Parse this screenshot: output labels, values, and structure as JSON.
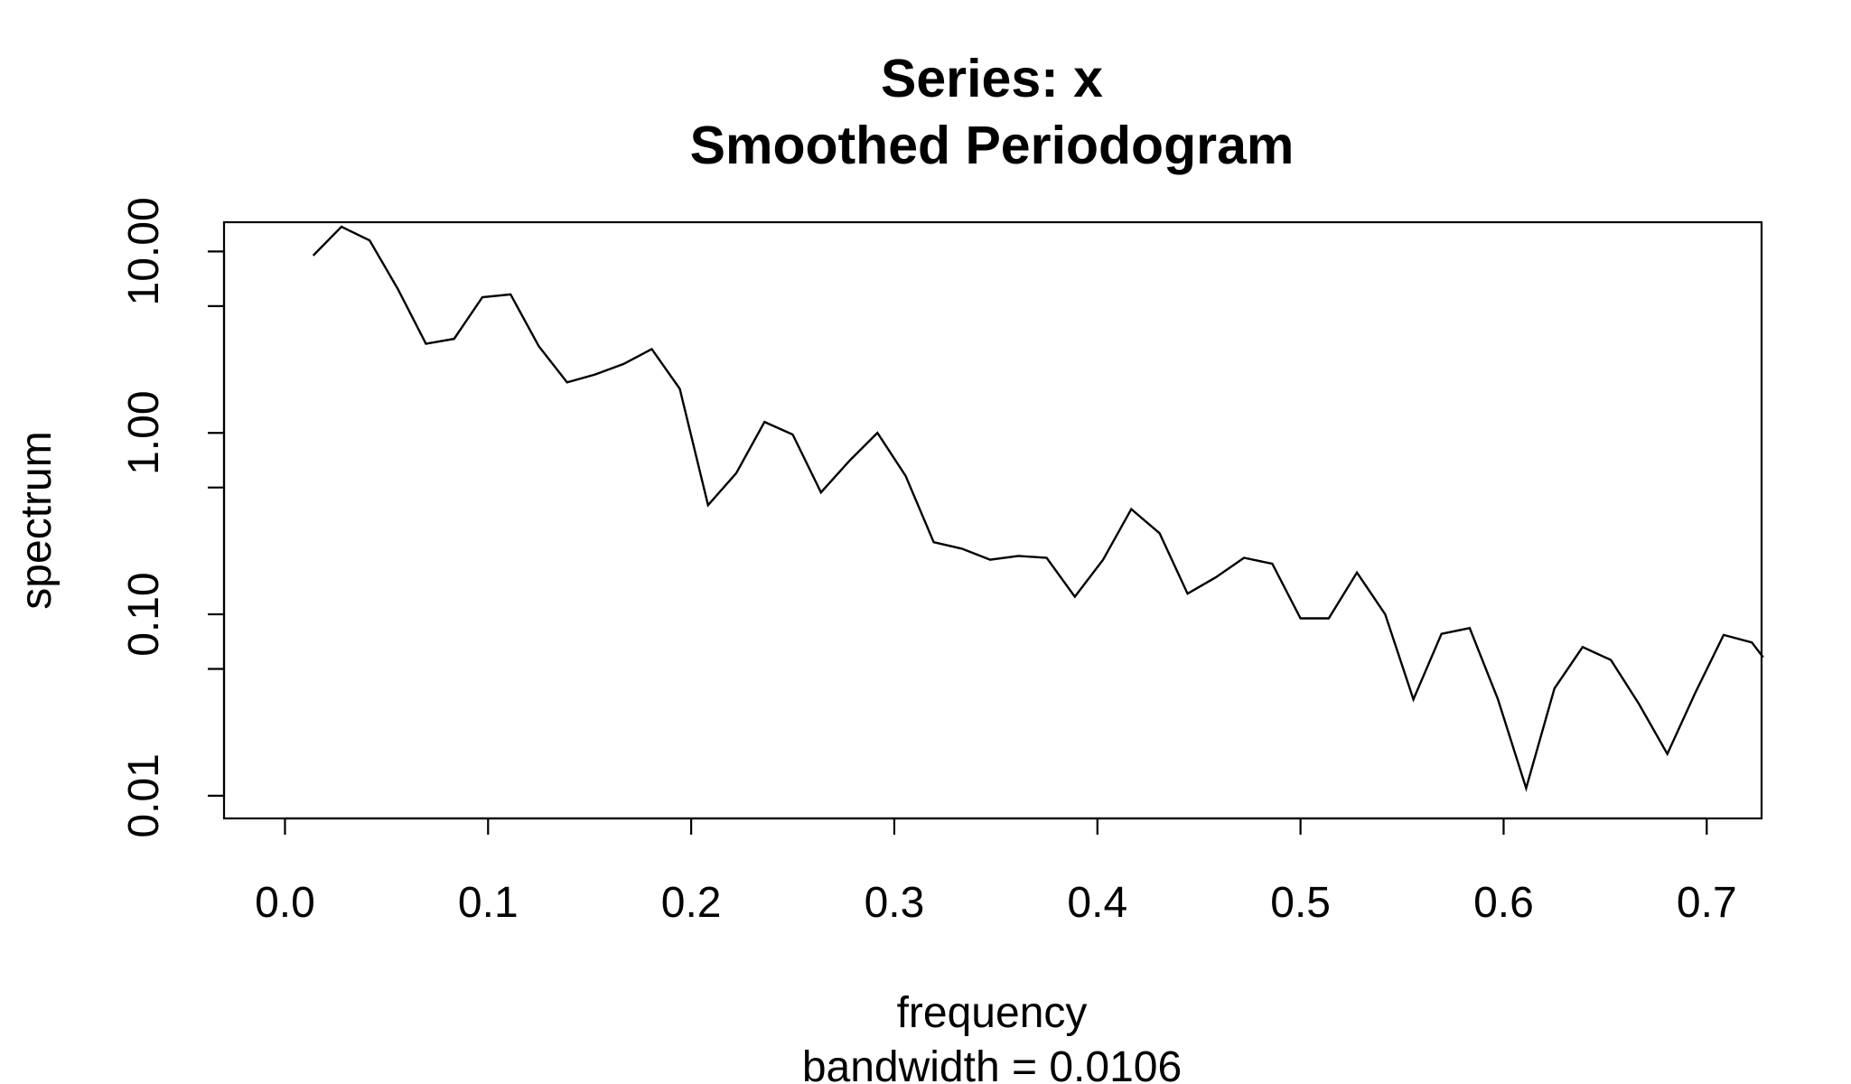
{
  "chart_data": {
    "type": "line",
    "title": "Series: x",
    "subtitle": "Smoothed Periodogram",
    "xlabel": "frequency",
    "ylabel": "spectrum",
    "sub_xlabel": "bandwidth = 0.0106",
    "xlim": [
      -0.03,
      0.727
    ],
    "ylim": [
      0.0075,
      14.5
    ],
    "y_scale": "log",
    "grid": false,
    "x_ticks": [
      0.0,
      0.1,
      0.2,
      0.3,
      0.4,
      0.5,
      0.6,
      0.7
    ],
    "x_tick_labels": [
      "0.0",
      "0.1",
      "0.2",
      "0.3",
      "0.4",
      "0.5",
      "0.6",
      "0.7"
    ],
    "y_major_ticks": [
      0.01,
      0.1,
      1,
      10
    ],
    "y_tick_labels": [
      "0.01",
      "0.10",
      "1.00",
      "10.00"
    ],
    "y_minor_ticks": [
      0.05,
      0.5,
      5
    ],
    "series": [
      {
        "color": "#000000",
        "x": [
          0.0139,
          0.0278,
          0.0417,
          0.0556,
          0.0694,
          0.0833,
          0.0972,
          0.1111,
          0.125,
          0.1389,
          0.1528,
          0.1667,
          0.1806,
          0.1944,
          0.2083,
          0.2222,
          0.2361,
          0.25,
          0.2639,
          0.2778,
          0.2917,
          0.3056,
          0.3194,
          0.3333,
          0.3472,
          0.3611,
          0.375,
          0.3889,
          0.4028,
          0.4167,
          0.4306,
          0.4444,
          0.4583,
          0.4722,
          0.4861,
          0.5,
          0.5139,
          0.5278,
          0.5417,
          0.5556,
          0.5694,
          0.5833,
          0.5972,
          0.6111,
          0.625,
          0.6389,
          0.6528,
          0.6667,
          0.6806,
          0.6944,
          0.7083,
          0.7222,
          0.7278
        ],
        "y": [
          9.5,
          13.7,
          11.5,
          6.2,
          3.1,
          3.3,
          5.6,
          5.8,
          3.0,
          1.9,
          2.1,
          2.4,
          2.9,
          1.75,
          0.4,
          0.6,
          1.15,
          0.98,
          0.47,
          0.7,
          1.0,
          0.58,
          0.25,
          0.23,
          0.2,
          0.21,
          0.205,
          0.125,
          0.2,
          0.38,
          0.28,
          0.13,
          0.16,
          0.205,
          0.19,
          0.095,
          0.095,
          0.17,
          0.1,
          0.034,
          0.078,
          0.084,
          0.034,
          0.011,
          0.039,
          0.066,
          0.056,
          0.032,
          0.017,
          0.037,
          0.077,
          0.07,
          0.058
        ]
      }
    ]
  }
}
